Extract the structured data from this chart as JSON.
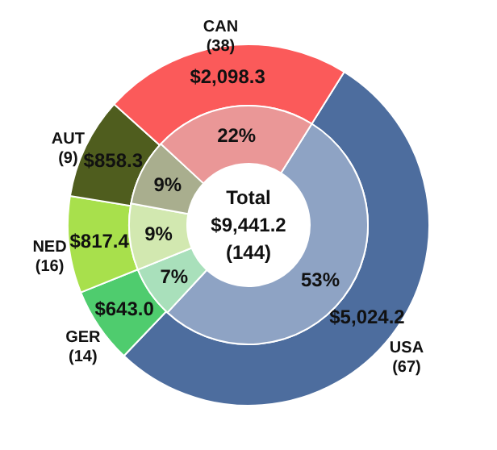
{
  "chart_data": {
    "type": "donut",
    "categories": [
      "USA\n(67)",
      "GER\n(14)",
      "NED\n(16)",
      "AUT\n(9)",
      "CAN\n(38)"
    ],
    "series": [
      {
        "values": [
          5024.2,
          643.0,
          817.4,
          858.3,
          2098.3
        ],
        "value_labels": [
          "$5,024.2",
          "$643.0",
          "$817.4",
          "$858.3",
          "$2,098.3"
        ],
        "colors": [
          "#4d6d9e",
          "#4fcc6e",
          "#a8e04c",
          "#4f5d1e",
          "#fb5a5a"
        ]
      },
      {
        "values": [
          53,
          7,
          9,
          9,
          22
        ],
        "value_labels": [
          "53%",
          "7%",
          "9%",
          "9%",
          "22%"
        ],
        "colors": [
          "#8ea3c4",
          "#a9e0bb",
          "#d2e8b0",
          "#a9ae8e",
          "#ea9797"
        ]
      }
    ],
    "annotations": [
      "Total",
      "$9,441.2",
      "(144)"
    ]
  }
}
